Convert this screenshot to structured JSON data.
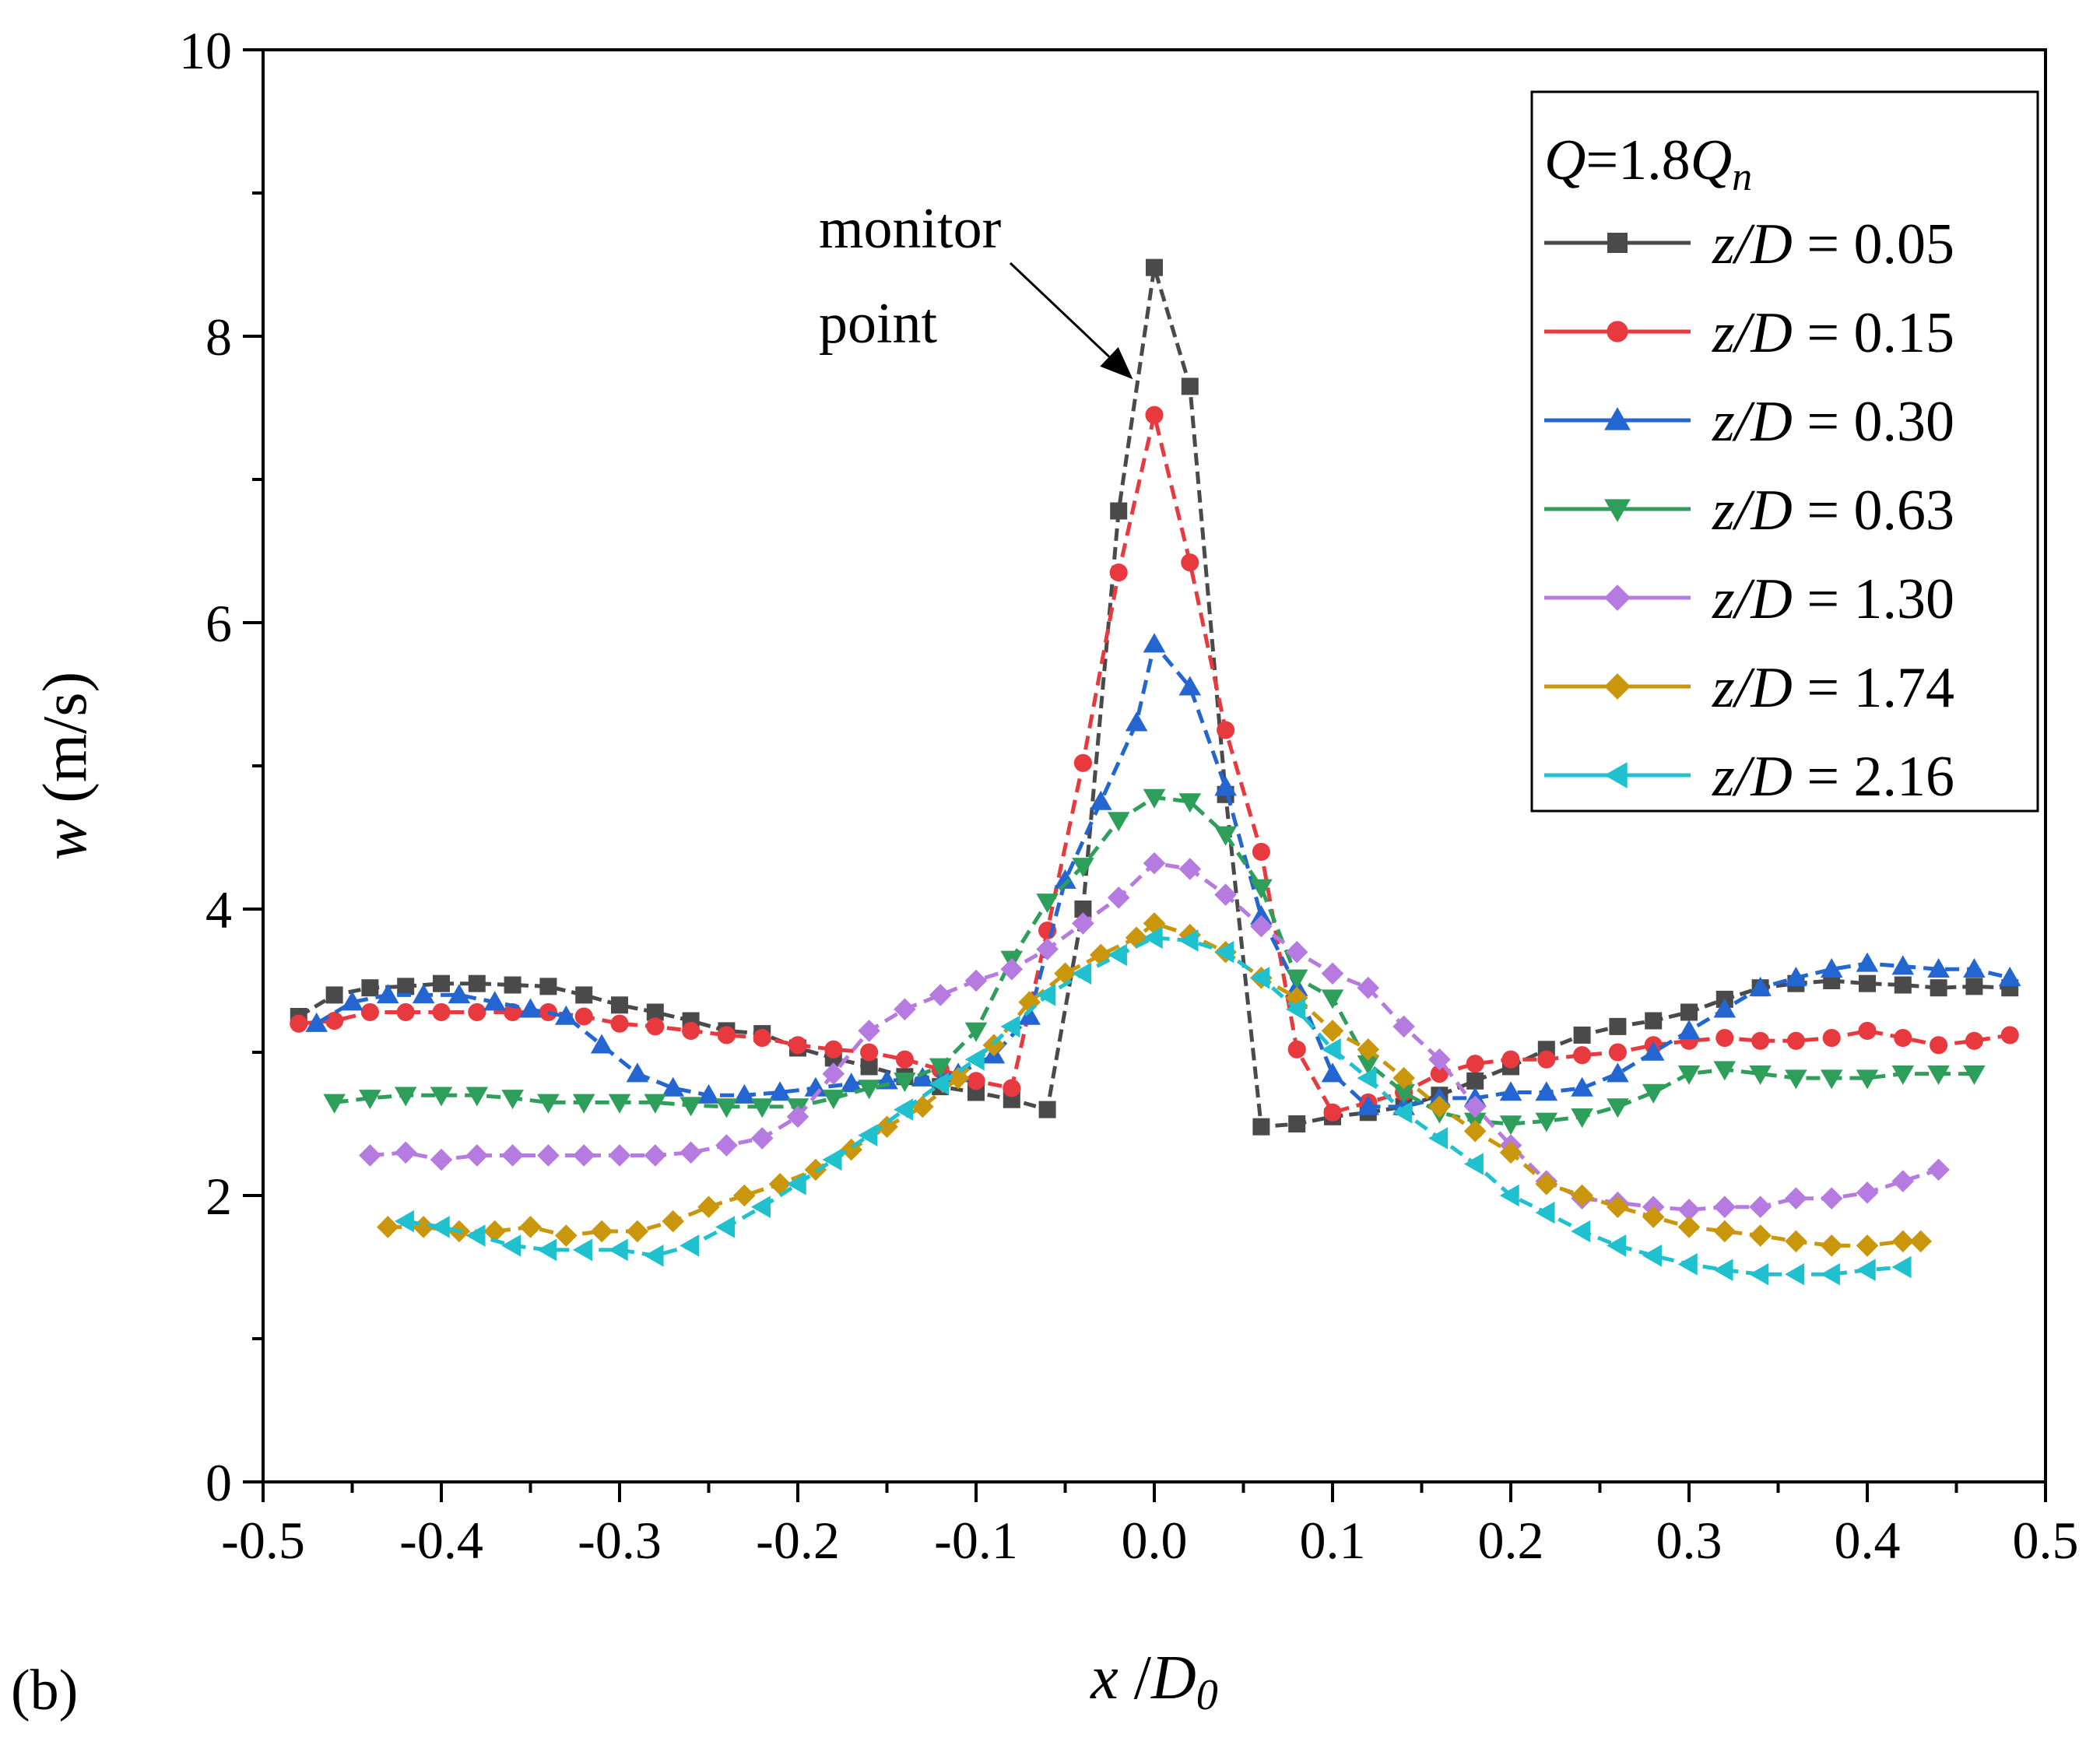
{
  "chart_data": {
    "type": "line",
    "panel_label": "(b)",
    "xlabel": {
      "var": "x",
      "sep": " /",
      "sym": "D",
      "sub": "0"
    },
    "ylabel": {
      "var": "w",
      "unit": " (m/s)"
    },
    "xlim": [
      -0.5,
      0.5
    ],
    "ylim": [
      0,
      10
    ],
    "xticks": [
      -0.5,
      -0.4,
      -0.3,
      -0.2,
      -0.1,
      0.0,
      0.1,
      0.2,
      0.3,
      0.4,
      0.5
    ],
    "xtick_labels": [
      "-0.5",
      "-0.4",
      "-0.3",
      "-0.2",
      "-0.1",
      "0.0",
      "0.1",
      "0.2",
      "0.3",
      "0.4",
      "0.5"
    ],
    "yticks": [
      0,
      2,
      4,
      6,
      8,
      10
    ],
    "ytick_labels": [
      "0",
      "2",
      "4",
      "6",
      "8",
      "10"
    ],
    "legend": {
      "title": {
        "var": "Q",
        "eq": "=1.8",
        "sym": "Q",
        "sub": "n"
      },
      "position": "top-right"
    },
    "annotation": {
      "lines": [
        "monitor",
        "point"
      ],
      "target": [
        -0.012,
        7.7
      ]
    },
    "series": [
      {
        "name": "z/D = 0.05",
        "label_var": "z/D",
        "label_rest": " = 0.05",
        "color": "#4a4a4a",
        "marker": "square",
        "x": [
          -0.48,
          -0.46,
          -0.44,
          -0.42,
          -0.4,
          -0.38,
          -0.36,
          -0.34,
          -0.32,
          -0.3,
          -0.28,
          -0.26,
          -0.24,
          -0.22,
          -0.2,
          -0.18,
          -0.16,
          -0.14,
          -0.12,
          -0.1,
          -0.08,
          -0.06,
          -0.04,
          -0.02,
          0.0,
          0.02,
          0.04,
          0.06,
          0.08,
          0.1,
          0.12,
          0.14,
          0.16,
          0.18,
          0.2,
          0.22,
          0.24,
          0.26,
          0.28,
          0.3,
          0.32,
          0.34,
          0.36,
          0.38,
          0.4,
          0.42,
          0.44,
          0.46,
          0.48
        ],
        "y": [
          3.25,
          3.4,
          3.45,
          3.46,
          3.48,
          3.48,
          3.47,
          3.46,
          3.4,
          3.33,
          3.28,
          3.22,
          3.15,
          3.13,
          3.03,
          2.96,
          2.9,
          2.83,
          2.76,
          2.72,
          2.67,
          2.6,
          4.0,
          6.78,
          8.48,
          7.65,
          4.8,
          2.48,
          2.5,
          2.55,
          2.58,
          2.62,
          2.7,
          2.8,
          2.9,
          3.02,
          3.12,
          3.18,
          3.22,
          3.28,
          3.37,
          3.45,
          3.48,
          3.5,
          3.48,
          3.47,
          3.45,
          3.46,
          3.45
        ]
      },
      {
        "name": "z/D = 0.15",
        "label_var": "z/D",
        "label_rest": " = 0.15",
        "color": "#e8393f",
        "marker": "circle",
        "x": [
          -0.48,
          -0.46,
          -0.44,
          -0.42,
          -0.4,
          -0.38,
          -0.36,
          -0.34,
          -0.32,
          -0.3,
          -0.28,
          -0.26,
          -0.24,
          -0.22,
          -0.2,
          -0.18,
          -0.16,
          -0.14,
          -0.12,
          -0.1,
          -0.08,
          -0.06,
          -0.04,
          -0.02,
          0.0,
          0.02,
          0.04,
          0.06,
          0.08,
          0.1,
          0.12,
          0.14,
          0.16,
          0.18,
          0.2,
          0.22,
          0.24,
          0.26,
          0.28,
          0.3,
          0.32,
          0.34,
          0.36,
          0.38,
          0.4,
          0.42,
          0.44,
          0.46,
          0.48
        ],
        "y": [
          3.2,
          3.22,
          3.28,
          3.28,
          3.28,
          3.28,
          3.28,
          3.28,
          3.25,
          3.2,
          3.18,
          3.15,
          3.12,
          3.1,
          3.05,
          3.02,
          3.0,
          2.95,
          2.88,
          2.8,
          2.75,
          3.85,
          5.02,
          6.35,
          7.45,
          6.42,
          5.25,
          4.4,
          3.02,
          2.58,
          2.65,
          2.72,
          2.85,
          2.92,
          2.95,
          2.95,
          2.98,
          3.0,
          3.05,
          3.08,
          3.1,
          3.08,
          3.08,
          3.1,
          3.15,
          3.1,
          3.05,
          3.08,
          3.12
        ]
      },
      {
        "name": "z/D = 0.30",
        "label_var": "z/D",
        "label_rest": " = 0.30",
        "color": "#2466d1",
        "marker": "triangle-up",
        "x": [
          -0.47,
          -0.45,
          -0.43,
          -0.41,
          -0.39,
          -0.37,
          -0.35,
          -0.33,
          -0.31,
          -0.29,
          -0.27,
          -0.25,
          -0.23,
          -0.21,
          -0.19,
          -0.17,
          -0.15,
          -0.13,
          -0.11,
          -0.09,
          -0.07,
          -0.05,
          -0.03,
          -0.01,
          0.0,
          0.02,
          0.04,
          0.06,
          0.08,
          0.1,
          0.12,
          0.14,
          0.16,
          0.18,
          0.2,
          0.22,
          0.24,
          0.26,
          0.28,
          0.3,
          0.32,
          0.34,
          0.36,
          0.38,
          0.4,
          0.42,
          0.44,
          0.46,
          0.48
        ],
        "y": [
          3.2,
          3.35,
          3.4,
          3.4,
          3.4,
          3.35,
          3.3,
          3.25,
          3.05,
          2.85,
          2.75,
          2.7,
          2.7,
          2.72,
          2.75,
          2.78,
          2.8,
          2.82,
          2.85,
          2.98,
          3.25,
          4.2,
          4.75,
          5.3,
          5.85,
          5.55,
          4.85,
          3.95,
          3.45,
          2.85,
          2.62,
          2.62,
          2.68,
          2.68,
          2.72,
          2.72,
          2.75,
          2.85,
          3.0,
          3.15,
          3.3,
          3.45,
          3.52,
          3.58,
          3.62,
          3.6,
          3.58,
          3.58,
          3.52
        ]
      },
      {
        "name": "z/D = 0.63",
        "label_var": "z/D",
        "label_rest": " = 0.63",
        "color": "#2e9e5b",
        "marker": "triangle-down",
        "x": [
          -0.46,
          -0.44,
          -0.42,
          -0.4,
          -0.38,
          -0.36,
          -0.34,
          -0.32,
          -0.3,
          -0.28,
          -0.26,
          -0.24,
          -0.22,
          -0.2,
          -0.18,
          -0.16,
          -0.14,
          -0.12,
          -0.1,
          -0.08,
          -0.06,
          -0.04,
          -0.02,
          0.0,
          0.02,
          0.04,
          0.06,
          0.08,
          0.1,
          0.12,
          0.14,
          0.16,
          0.18,
          0.2,
          0.22,
          0.24,
          0.26,
          0.28,
          0.3,
          0.32,
          0.34,
          0.36,
          0.38,
          0.4,
          0.42,
          0.44,
          0.46
        ],
        "y": [
          2.65,
          2.68,
          2.7,
          2.7,
          2.7,
          2.68,
          2.65,
          2.65,
          2.65,
          2.65,
          2.63,
          2.62,
          2.62,
          2.62,
          2.68,
          2.75,
          2.8,
          2.9,
          3.15,
          3.65,
          4.05,
          4.3,
          4.62,
          4.78,
          4.75,
          4.52,
          4.15,
          3.52,
          3.38,
          2.92,
          2.72,
          2.58,
          2.52,
          2.5,
          2.52,
          2.55,
          2.62,
          2.72,
          2.85,
          2.88,
          2.85,
          2.82,
          2.82,
          2.82,
          2.85,
          2.85,
          2.85
        ]
      },
      {
        "name": "z/D = 1.30",
        "label_var": "z/D",
        "label_rest": " = 1.30",
        "color": "#b57be0",
        "marker": "diamond",
        "x": [
          -0.44,
          -0.42,
          -0.4,
          -0.38,
          -0.36,
          -0.34,
          -0.32,
          -0.3,
          -0.28,
          -0.26,
          -0.24,
          -0.22,
          -0.2,
          -0.18,
          -0.16,
          -0.14,
          -0.12,
          -0.1,
          -0.08,
          -0.06,
          -0.04,
          -0.02,
          0.0,
          0.02,
          0.04,
          0.06,
          0.08,
          0.1,
          0.12,
          0.14,
          0.16,
          0.18,
          0.2,
          0.22,
          0.24,
          0.26,
          0.28,
          0.3,
          0.32,
          0.34,
          0.36,
          0.38,
          0.4,
          0.42,
          0.44
        ],
        "y": [
          2.28,
          2.3,
          2.25,
          2.28,
          2.28,
          2.28,
          2.28,
          2.28,
          2.28,
          2.3,
          2.35,
          2.4,
          2.55,
          2.85,
          3.15,
          3.3,
          3.4,
          3.5,
          3.58,
          3.72,
          3.9,
          4.08,
          4.32,
          4.28,
          4.1,
          3.88,
          3.7,
          3.55,
          3.45,
          3.18,
          2.95,
          2.62,
          2.35,
          2.1,
          1.98,
          1.95,
          1.92,
          1.9,
          1.92,
          1.92,
          1.98,
          1.98,
          2.02,
          2.1,
          2.18
        ]
      },
      {
        "name": "z/D = 1.74",
        "label_var": "z/D",
        "label_rest": " = 1.74",
        "color": "#c9960c",
        "marker": "diamond",
        "x": [
          -0.43,
          -0.41,
          -0.39,
          -0.37,
          -0.35,
          -0.33,
          -0.31,
          -0.29,
          -0.27,
          -0.25,
          -0.23,
          -0.21,
          -0.19,
          -0.17,
          -0.15,
          -0.13,
          -0.11,
          -0.09,
          -0.07,
          -0.05,
          -0.03,
          -0.01,
          0.0,
          0.02,
          0.04,
          0.06,
          0.08,
          0.1,
          0.12,
          0.14,
          0.16,
          0.18,
          0.2,
          0.22,
          0.24,
          0.26,
          0.28,
          0.3,
          0.32,
          0.34,
          0.36,
          0.38,
          0.4,
          0.42,
          0.43
        ],
        "y": [
          1.78,
          1.78,
          1.75,
          1.75,
          1.78,
          1.72,
          1.75,
          1.75,
          1.82,
          1.92,
          2.0,
          2.08,
          2.18,
          2.32,
          2.48,
          2.62,
          2.82,
          3.05,
          3.35,
          3.55,
          3.68,
          3.8,
          3.9,
          3.82,
          3.7,
          3.52,
          3.38,
          3.15,
          3.02,
          2.82,
          2.62,
          2.45,
          2.3,
          2.08,
          2.0,
          1.92,
          1.85,
          1.78,
          1.75,
          1.72,
          1.68,
          1.65,
          1.65,
          1.68,
          1.68
        ]
      },
      {
        "name": "z/D = 2.16",
        "label_var": "z/D",
        "label_rest": " = 2.16",
        "color": "#1fc1cf",
        "marker": "triangle-left",
        "x": [
          -0.42,
          -0.4,
          -0.38,
          -0.36,
          -0.34,
          -0.32,
          -0.3,
          -0.28,
          -0.26,
          -0.24,
          -0.22,
          -0.2,
          -0.18,
          -0.16,
          -0.14,
          -0.12,
          -0.1,
          -0.08,
          -0.06,
          -0.04,
          -0.02,
          0.0,
          0.02,
          0.04,
          0.06,
          0.08,
          0.1,
          0.12,
          0.14,
          0.16,
          0.18,
          0.2,
          0.22,
          0.24,
          0.26,
          0.28,
          0.3,
          0.32,
          0.34,
          0.36,
          0.38,
          0.4,
          0.42
        ],
        "y": [
          1.82,
          1.78,
          1.72,
          1.65,
          1.62,
          1.62,
          1.62,
          1.58,
          1.65,
          1.78,
          1.92,
          2.08,
          2.25,
          2.42,
          2.6,
          2.78,
          2.95,
          3.18,
          3.4,
          3.55,
          3.68,
          3.8,
          3.78,
          3.7,
          3.52,
          3.3,
          3.02,
          2.82,
          2.58,
          2.4,
          2.22,
          2.0,
          1.88,
          1.75,
          1.65,
          1.58,
          1.52,
          1.48,
          1.45,
          1.45,
          1.45,
          1.48,
          1.5
        ]
      }
    ]
  }
}
